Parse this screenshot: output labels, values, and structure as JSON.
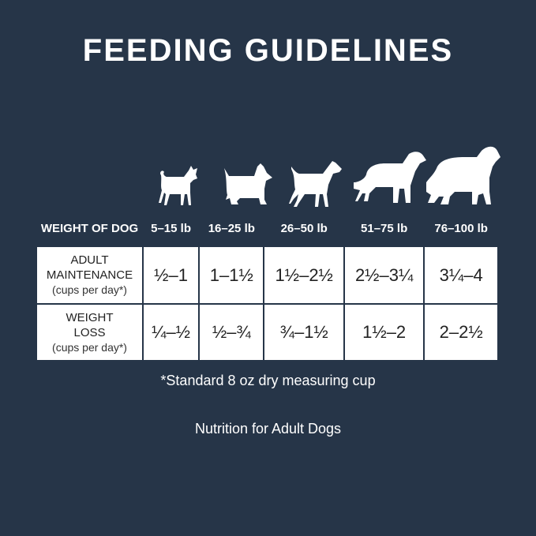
{
  "title": "FEEDING GUIDELINES",
  "colors": {
    "background": "#263548",
    "table_cells": "#ffffff",
    "text": "#ffffff"
  },
  "dogs": [
    "chihuahua-silhouette-icon",
    "terrier-silhouette-icon",
    "boxer-silhouette-icon",
    "retriever-silhouette-icon",
    "newfoundland-silhouette-icon"
  ],
  "table": {
    "header": [
      "WEIGHT OF DOG",
      "5–15 lb",
      "16–25 lb",
      "26–50 lb",
      "51–75 lb",
      "76–100 lb"
    ],
    "rows": [
      {
        "label": "ADULT",
        "label2": "MAINTENANCE",
        "sub": "(cups per day*)",
        "values": [
          "½–1",
          "1–1½",
          "1½–2½",
          "2½–3¼",
          "3¼–4"
        ]
      },
      {
        "label": "WEIGHT",
        "label2": "LOSS",
        "sub": "(cups per day*)",
        "values": [
          "¼–½",
          "½–¾",
          "¾–1½",
          "1½–2",
          "2–2½"
        ]
      }
    ]
  },
  "footnote": "*Standard 8 oz dry measuring cup",
  "tagline": "Nutrition for Adult Dogs"
}
